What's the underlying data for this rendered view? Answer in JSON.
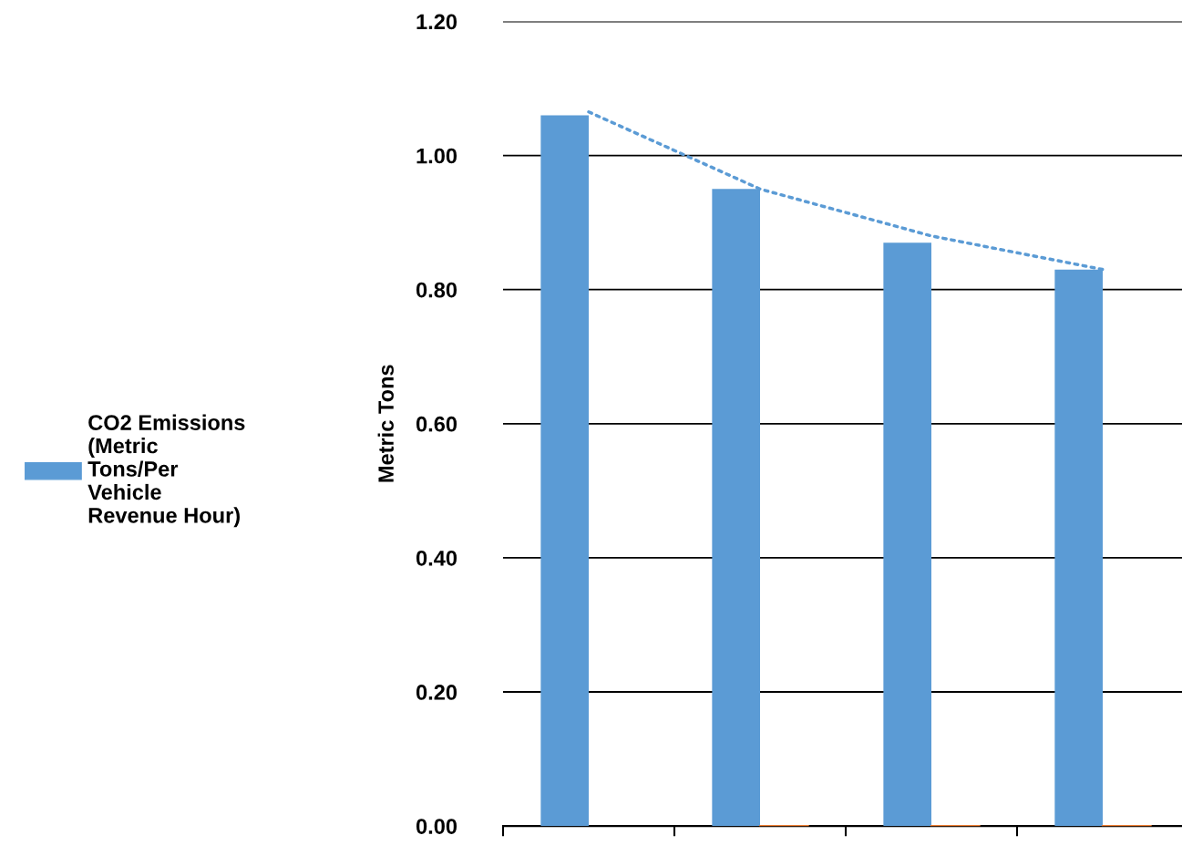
{
  "chart_data": {
    "type": "bar",
    "ylabel": "Metric Tons",
    "categories": [
      null,
      null,
      null,
      null
    ],
    "series": [
      {
        "name": "CO2 Emissions (Metric Tons/Per Vehicle Revenue Hour)",
        "color": "#5b9bd5",
        "values": [
          1.06,
          0.95,
          0.87,
          0.83
        ]
      },
      {
        "color": "#ed7d31",
        "values": [
          null,
          0,
          0,
          0
        ]
      },
      {
        "type": "line",
        "color": "#5b9bd5",
        "line_style": "dotted",
        "values": [
          1.065,
          0.95,
          0.88,
          0.83
        ]
      }
    ],
    "ylim": [
      0,
      1.2
    ],
    "yticks": [
      {
        "value": 0,
        "label": "0.00"
      },
      {
        "value": 0.2,
        "label": "0.20"
      },
      {
        "value": 0.4,
        "label": "0.40"
      },
      {
        "value": 0.6,
        "label": "0.60"
      },
      {
        "value": 0.8,
        "label": "0.80"
      },
      {
        "value": 1.0,
        "label": "1.00"
      },
      {
        "value": 1.2,
        "label": "1.20"
      }
    ],
    "grid": "y",
    "legend": "left"
  }
}
